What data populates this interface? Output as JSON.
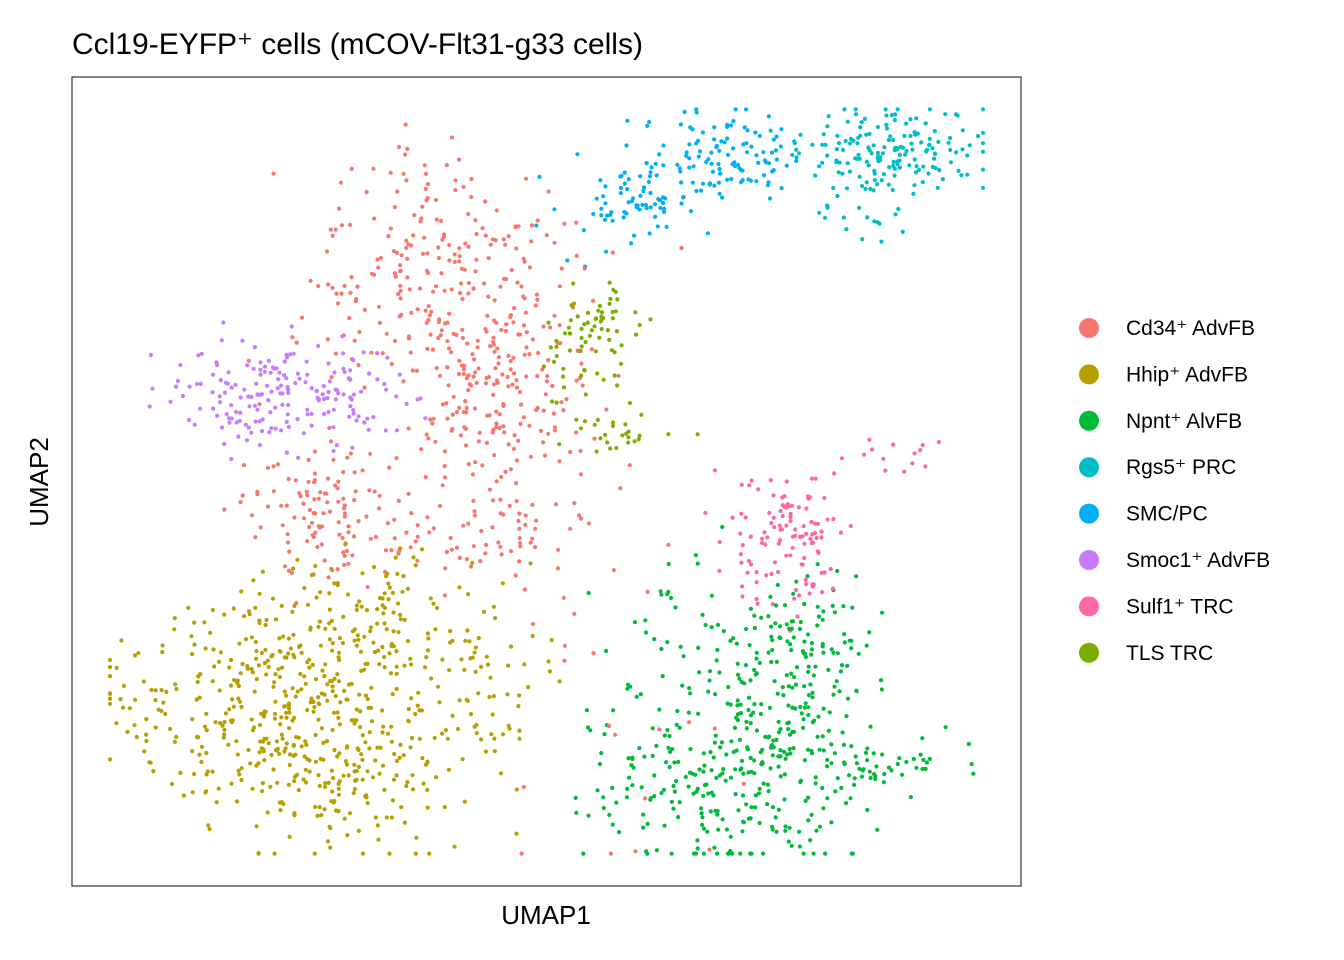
{
  "chart_data": {
    "type": "scatter",
    "title": "Ccl19-EYFP⁺ cells (mCOV-Flt31-g33 cells)",
    "xlabel": "UMAP1",
    "ylabel": "UMAP2",
    "axis_ticks_shown": false,
    "grid": false,
    "legend_position": "right",
    "series": [
      {
        "name": "Cd34⁺ AdvFB",
        "color": "#F8766D",
        "clusters": [
          {
            "center": [
              0.397,
              0.745
            ],
            "spread": [
              0.072,
              0.076
            ],
            "weight": 3.0
          },
          {
            "center": [
              0.452,
              0.58
            ],
            "spread": [
              0.05,
              0.06
            ],
            "weight": 1.6
          },
          {
            "center": [
              0.262,
              0.47
            ],
            "spread": [
              0.048,
              0.04
            ],
            "weight": 1.2
          },
          {
            "center": [
              0.415,
              0.43
            ],
            "spread": [
              0.065,
              0.03
            ],
            "weight": 0.8
          },
          {
            "center": [
              0.505,
              0.33
            ],
            "spread": [
              0.07,
              0.12
            ],
            "weight": 0.2
          },
          {
            "center": [
              0.64,
              0.15
            ],
            "spread": [
              0.05,
              0.08
            ],
            "weight": 0.1
          }
        ]
      },
      {
        "name": "Hhip⁺ AdvFB",
        "color": "#B79F00",
        "clusters": [
          {
            "center": [
              0.21,
              0.225
            ],
            "spread": [
              0.088,
              0.064
            ],
            "weight": 4.0
          },
          {
            "center": [
              0.3,
              0.13
            ],
            "spread": [
              0.058,
              0.052
            ],
            "weight": 1.5
          },
          {
            "center": [
              0.31,
              0.33
            ],
            "spread": [
              0.058,
              0.05
            ],
            "weight": 1.3
          },
          {
            "center": [
              0.43,
              0.25
            ],
            "spread": [
              0.038,
              0.045
            ],
            "weight": 0.6
          }
        ]
      },
      {
        "name": "Npnt⁺ AlvFB",
        "color": "#00BA38",
        "clusters": [
          {
            "center": [
              0.718,
              0.16
            ],
            "spread": [
              0.058,
              0.075
            ],
            "weight": 2.8
          },
          {
            "center": [
              0.77,
              0.3
            ],
            "spread": [
              0.035,
              0.055
            ],
            "weight": 1.2
          },
          {
            "center": [
              0.618,
              0.14
            ],
            "spread": [
              0.048,
              0.045
            ],
            "weight": 0.9
          },
          {
            "center": [
              0.858,
              0.148
            ],
            "spread": [
              0.05,
              0.018
            ],
            "weight": 0.5
          },
          {
            "center": [
              0.65,
              0.33
            ],
            "spread": [
              0.038,
              0.035
            ],
            "weight": 0.3
          }
        ]
      },
      {
        "name": "Rgs5⁺ PRC",
        "color": "#00BFC4",
        "clusters": [
          {
            "center": [
              0.89,
              0.915
            ],
            "spread": [
              0.045,
              0.025
            ],
            "weight": 1.3
          },
          {
            "center": [
              0.835,
              0.86
            ],
            "spread": [
              0.018,
              0.03
            ],
            "weight": 0.4
          },
          {
            "center": [
              0.79,
              0.92
            ],
            "spread": [
              0.04,
              0.02
            ],
            "weight": 0.3
          }
        ]
      },
      {
        "name": "SMC/PC",
        "color": "#00B0F6",
        "clusters": [
          {
            "center": [
              0.69,
              0.9
            ],
            "spread": [
              0.045,
              0.03
            ],
            "weight": 1.2
          },
          {
            "center": [
              0.62,
              0.855
            ],
            "spread": [
              0.03,
              0.025
            ],
            "weight": 0.6
          },
          {
            "center": [
              0.565,
              0.82
            ],
            "spread": [
              0.035,
              0.02
            ],
            "weight": 0.3
          }
        ]
      },
      {
        "name": "Smoc1⁺ AdvFB",
        "color": "#C77CFF",
        "clusters": [
          {
            "center": [
              0.185,
              0.605
            ],
            "spread": [
              0.04,
              0.035
            ],
            "weight": 1.2
          },
          {
            "center": [
              0.275,
              0.6
            ],
            "spread": [
              0.04,
              0.03
            ],
            "weight": 0.9
          }
        ]
      },
      {
        "name": "Sulf1⁺ TRC",
        "color": "#FF67A4",
        "clusters": [
          {
            "center": [
              0.757,
              0.425
            ],
            "spread": [
              0.035,
              0.045
            ],
            "weight": 1.3
          },
          {
            "center": [
              0.875,
              0.53
            ],
            "spread": [
              0.04,
              0.01
            ],
            "weight": 0.15
          }
        ]
      },
      {
        "name": "TLS TRC",
        "color": "#7CAE00",
        "clusters": [
          {
            "center": [
              0.56,
              0.7
            ],
            "spread": [
              0.02,
              0.03
            ],
            "weight": 0.5
          },
          {
            "center": [
              0.53,
              0.65
            ],
            "spread": [
              0.02,
              0.03
            ],
            "weight": 0.3
          },
          {
            "center": [
              0.575,
              0.565
            ],
            "spread": [
              0.03,
              0.012
            ],
            "weight": 0.3
          }
        ]
      }
    ]
  }
}
